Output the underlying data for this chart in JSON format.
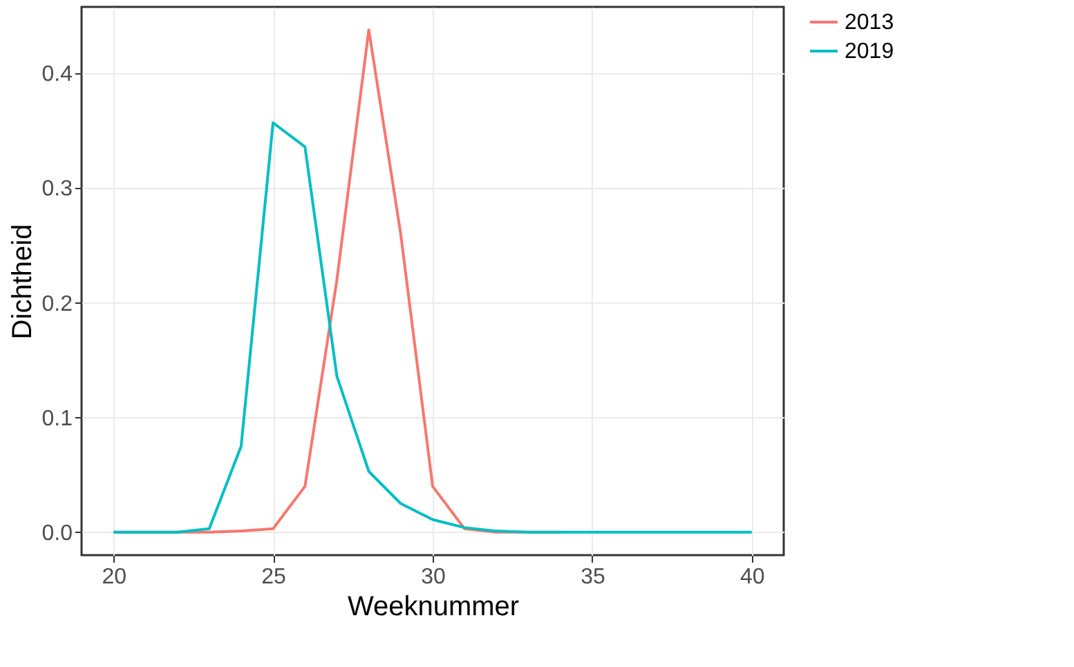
{
  "chart_data": {
    "type": "line",
    "xlabel": "Weeknummer",
    "ylabel": "Dichtheid",
    "x": [
      20,
      21,
      22,
      23,
      24,
      25,
      26,
      27,
      28,
      29,
      30,
      31,
      32,
      33,
      34,
      35,
      36,
      37,
      38,
      39,
      40
    ],
    "series": [
      {
        "name": "2013",
        "color": "#f8766d",
        "values": [
          0,
          0,
          0,
          0,
          0.001,
          0.003,
          0.04,
          0.22,
          0.438,
          0.26,
          0.04,
          0.003,
          0,
          0,
          0,
          null,
          null,
          null,
          null,
          null,
          null
        ]
      },
      {
        "name": "2019",
        "color": "#00bfc4",
        "values": [
          0,
          0,
          0,
          0.003,
          0.075,
          0.357,
          0.336,
          0.136,
          0.053,
          0.025,
          0.011,
          0.004,
          0.001,
          0,
          0,
          0,
          0,
          0,
          0,
          0,
          0
        ]
      }
    ],
    "xlim": [
      19,
      41
    ],
    "xticks": [
      20,
      25,
      30,
      35,
      40
    ],
    "ylim": [
      -0.02,
      0.458
    ],
    "yticks": [
      {
        "value": 0,
        "label": "0.0"
      },
      0.1,
      0.2,
      0.3,
      0.4
    ],
    "grid": true,
    "legend": "right"
  }
}
